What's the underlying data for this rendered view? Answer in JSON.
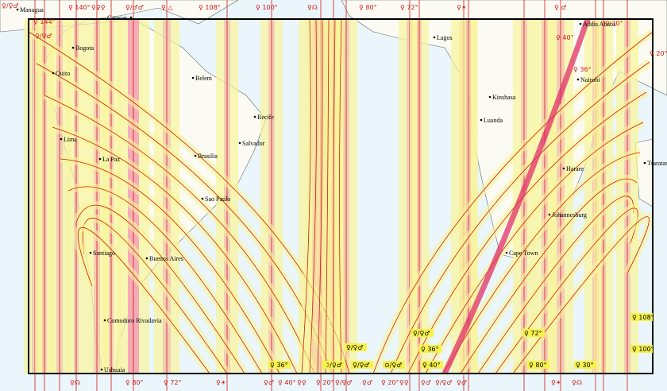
{
  "cities": [
    "Managua",
    "Caracas",
    "Bogota",
    "Quito",
    "Lima",
    "La Paz",
    "Belem",
    "Recife",
    "Salvador",
    "Brasilia",
    "Sao Paulo",
    "Santiago",
    "Buenos Aires",
    "Comodoro Rivadavia",
    "Ushuaia",
    "Lagos",
    "Kinshasa",
    "Luanda",
    "Addis Ababa",
    "Nairobi",
    "Harare",
    "Johannesburg",
    "Cape Town",
    "Tsaratanana"
  ],
  "top_labels": [
    "♀/♀♂",
    "♀ 140°",
    "♀♀♀",
    "♀/♂♂",
    "♀ △",
    "♀ 108°",
    "♀ 100°",
    "♀☊",
    "♀ 80°",
    "♀ 72°",
    "♀✶",
    "♀ ♂",
    "♀/♀♂",
    "♀ 144°",
    "♀ 40°",
    "♀ 36°",
    "♀ 30°",
    "♀ 20°"
  ],
  "bottom_labels": [
    "♀☊",
    "♀ 80°",
    "♀ 72°",
    "♀✶",
    "♀♂",
    "♀ 40°",
    "♀♀",
    "♀ 20°",
    "♀/♀♂",
    "♀♂",
    "♀ 20°",
    "♀♀",
    "♀♂",
    "♀/♀♂",
    "♀♂",
    "♀✶",
    "♀☊"
  ],
  "boxed_labels": [
    "♀ 36°",
    "♀ 30°",
    "☽/♀♂",
    "♀/♀♂",
    "♀/♀♂",
    "⊙/♀♂",
    "♀/♀♂",
    "♀ 36°",
    "♀ 40°",
    "♀ 72°",
    "♀ 80°",
    "♀ 108°",
    "♀ 100°"
  ]
}
